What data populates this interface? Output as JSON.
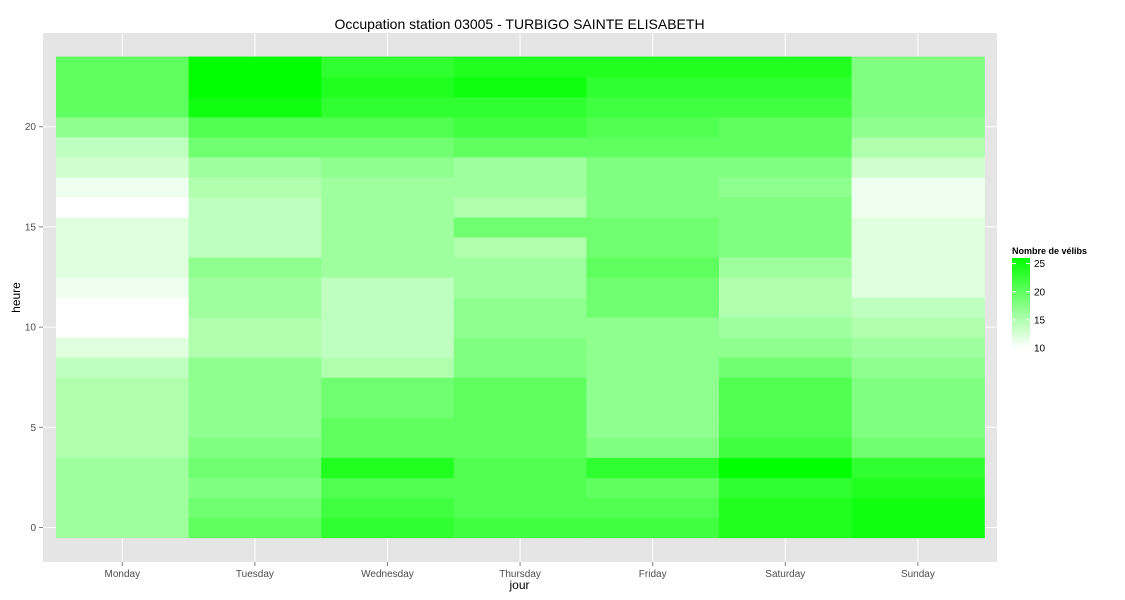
{
  "chart_data": {
    "type": "heatmap",
    "title": "Occupation station 03005 - TURBIGO SAINTE ELISABETH",
    "xlabel": "jour",
    "ylabel": "heure",
    "x_categories": [
      "Monday",
      "Tuesday",
      "Wednesday",
      "Thursday",
      "Friday",
      "Saturday",
      "Sunday"
    ],
    "y_range": [
      0,
      23
    ],
    "y_ticks": [
      0,
      5,
      10,
      15,
      20
    ],
    "grid": true,
    "legend": {
      "title": "Nombre de vélibs",
      "placement": "right",
      "min": 10,
      "max": 26,
      "ticks": [
        10,
        15,
        20,
        25
      ],
      "low_color": "#ffffff",
      "high_color": "#00ff00"
    },
    "values": [
      [
        16,
        20,
        23,
        22,
        22,
        24,
        25
      ],
      [
        16,
        19,
        22,
        21,
        21,
        24,
        25
      ],
      [
        16,
        18,
        21,
        21,
        20,
        23,
        24
      ],
      [
        16,
        19,
        24,
        21,
        23,
        26,
        23
      ],
      [
        15,
        18,
        20,
        20,
        18,
        22,
        19
      ],
      [
        15,
        17,
        20,
        20,
        17,
        21,
        18
      ],
      [
        15,
        17,
        19,
        20,
        17,
        21,
        18
      ],
      [
        15,
        17,
        19,
        20,
        17,
        21,
        18
      ],
      [
        14,
        17,
        15,
        18,
        17,
        19,
        17
      ],
      [
        12,
        15,
        14,
        18,
        17,
        17,
        16
      ],
      [
        10,
        15,
        14,
        17,
        17,
        16,
        15
      ],
      [
        10,
        16,
        14,
        17,
        19,
        15,
        14
      ],
      [
        11,
        16,
        14,
        16,
        19,
        15,
        12
      ],
      [
        12,
        17,
        16,
        16,
        20,
        16,
        12
      ],
      [
        12,
        14,
        16,
        15,
        19,
        18,
        12
      ],
      [
        12,
        14,
        16,
        19,
        19,
        18,
        12
      ],
      [
        10,
        14,
        16,
        15,
        18,
        18,
        11
      ],
      [
        11,
        15,
        16,
        16,
        18,
        17,
        11
      ],
      [
        13,
        16,
        17,
        16,
        18,
        18,
        13
      ],
      [
        14,
        19,
        19,
        20,
        20,
        20,
        15
      ],
      [
        17,
        21,
        21,
        22,
        21,
        20,
        17
      ],
      [
        20,
        25,
        23,
        23,
        22,
        22,
        18
      ],
      [
        20,
        26,
        24,
        25,
        23,
        23,
        18
      ],
      [
        20,
        26,
        23,
        24,
        24,
        24,
        18
      ]
    ]
  }
}
